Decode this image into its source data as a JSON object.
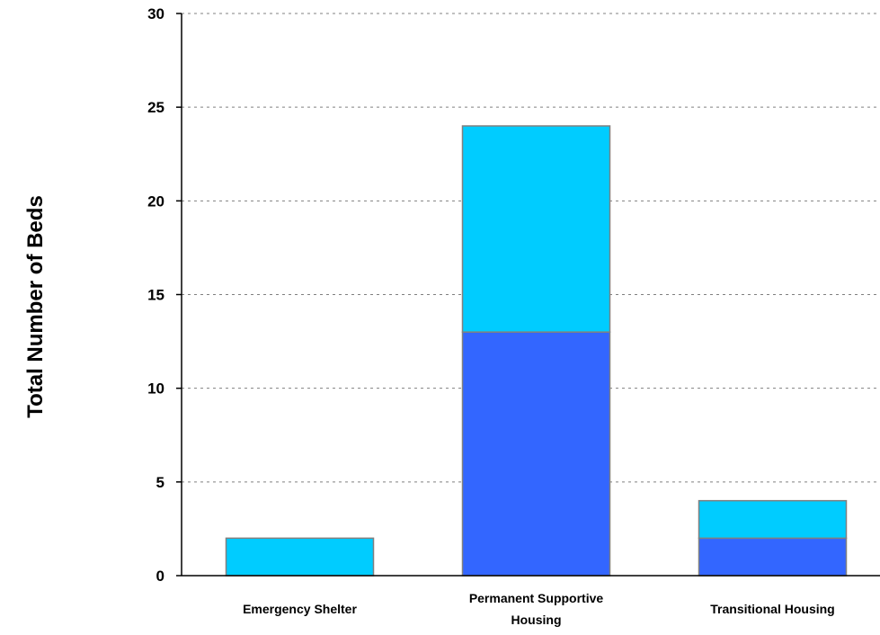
{
  "chart_data": {
    "type": "bar",
    "stacked": true,
    "title": "",
    "xlabel": "",
    "ylabel": "Total Number of Beds",
    "ylim": [
      0,
      30
    ],
    "yticks": [
      0,
      5,
      10,
      15,
      20,
      25,
      30
    ],
    "grid": true,
    "legend": "none",
    "categories": [
      {
        "lines": [
          "Emergency Shelter"
        ]
      },
      {
        "lines": [
          "Permanent Supportive",
          "Housing"
        ]
      },
      {
        "lines": [
          "Transitional Housing"
        ]
      }
    ],
    "series": [
      {
        "color": "#3366ff",
        "values": [
          0,
          13,
          2
        ]
      },
      {
        "color": "#00ccff",
        "values": [
          2,
          11,
          2
        ]
      }
    ],
    "colors": {
      "bar_border": "#808080",
      "grid": "#808080",
      "axis": "#000000"
    }
  }
}
